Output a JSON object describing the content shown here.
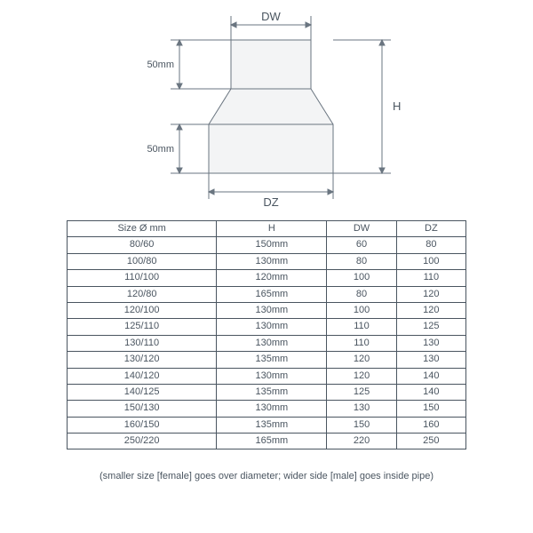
{
  "diagram": {
    "type": "technical-drawing",
    "labels": {
      "dw": "DW",
      "dz": "DZ",
      "h": "H",
      "top50": "50mm",
      "bot50": "50mm"
    },
    "stroke_color": "#6a7580",
    "shape_fill": "#f3f4f5",
    "label_fontsize": 13,
    "small_label_fontsize": 11
  },
  "table": {
    "columns": [
      "Size Ø mm",
      "H",
      "DW",
      "DZ"
    ],
    "rows": [
      [
        "80/60",
        "150mm",
        "60",
        "80"
      ],
      [
        "100/80",
        "130mm",
        "80",
        "100"
      ],
      [
        "110/100",
        "120mm",
        "100",
        "110"
      ],
      [
        "120/80",
        "165mm",
        "80",
        "120"
      ],
      [
        "120/100",
        "130mm",
        "100",
        "120"
      ],
      [
        "125/110",
        "130mm",
        "110",
        "125"
      ],
      [
        "130/110",
        "130mm",
        "110",
        "130"
      ],
      [
        "130/120",
        "135mm",
        "120",
        "130"
      ],
      [
        "140/120",
        "130mm",
        "120",
        "140"
      ],
      [
        "140/125",
        "135mm",
        "125",
        "140"
      ],
      [
        "150/130",
        "130mm",
        "130",
        "150"
      ],
      [
        "160/150",
        "135mm",
        "150",
        "160"
      ],
      [
        "250/220",
        "165mm",
        "220",
        "250"
      ]
    ],
    "border_color": "#4a5560",
    "text_color": "#4a5560",
    "cell_fontsize": 11
  },
  "footnote": "(smaller size [female] goes over diameter; wider side [male] goes inside pipe)"
}
